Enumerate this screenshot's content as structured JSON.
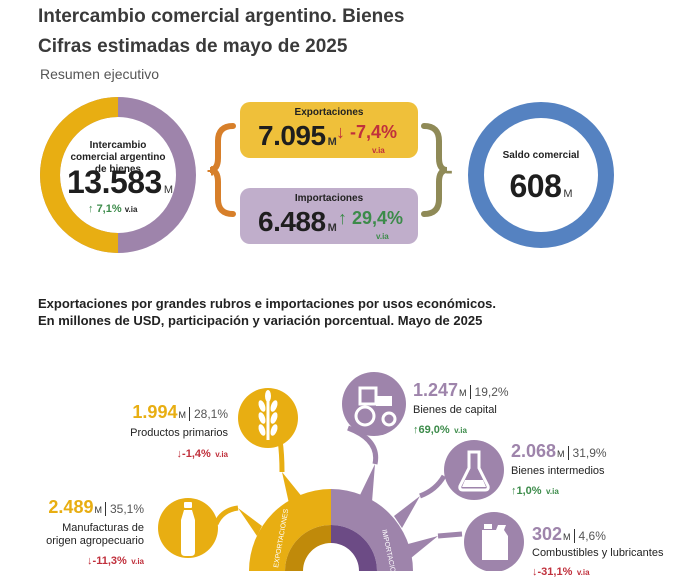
{
  "header": {
    "title": "Intercambio comercial argentino. Bienes",
    "subtitle": "Cifras estimadas de mayo de 2025",
    "section": "Resumen ejecutivo"
  },
  "summary": {
    "intercambio": {
      "label": "Intercambio comercial argentino de bienes",
      "value": "13.583",
      "unit": "M",
      "variation": "7,1%",
      "variation_suffix": "v.ia"
    },
    "exportaciones": {
      "label": "Exportaciones",
      "value": "7.095",
      "unit": "M",
      "variation": "-7,4%",
      "variation_suffix": "v.ia"
    },
    "importaciones": {
      "label": "Importaciones",
      "value": "6.488",
      "unit": "M",
      "variation": "29,4%",
      "variation_suffix": "v.ia"
    },
    "saldo": {
      "label": "Saldo comercial",
      "value": "608",
      "unit": "M"
    },
    "plus_sign": "+",
    "minus_sign": "-"
  },
  "breakdown": {
    "title_line1": "Exportaciones por grandes rubros e importaciones por usos económicos.",
    "title_line2": "En millones de USD, participación y variación porcentual. Mayo de 2025",
    "donut_label_left": "EXPORTACIONES",
    "donut_label_right": "IMPORTACIONES",
    "exports": [
      {
        "name": "Productos primarios",
        "value": "1.994",
        "unit": "M",
        "share": "28,1%",
        "variation": "-1,4%",
        "suffix": "v.ia",
        "icon": "wheat-icon"
      },
      {
        "name": "Manufacturas de origen agropecuario",
        "name_line1": "Manufacturas de",
        "name_line2": "origen agropecuario",
        "value": "2.489",
        "unit": "M",
        "share": "35,1%",
        "variation": "-11,3%",
        "suffix": "v.ia",
        "icon": "bottle-icon"
      }
    ],
    "imports": [
      {
        "name": "Bienes de capital",
        "value": "1.247",
        "unit": "M",
        "share": "19,2%",
        "variation": "69,0%",
        "suffix": "v.ia",
        "icon": "tractor-icon"
      },
      {
        "name": "Bienes intermedios",
        "value": "2.068",
        "unit": "M",
        "share": "31,9%",
        "variation": "1,0%",
        "suffix": "v.ia",
        "icon": "flask-icon"
      },
      {
        "name": "Combustibles y lubricantes",
        "value": "302",
        "unit": "M",
        "share": "4,6%",
        "variation": "-31,1%",
        "suffix": "v.ia",
        "icon": "fuel-can-icon"
      }
    ]
  },
  "colors": {
    "export_yellow": "#e8ae12",
    "import_purple": "#9e84ab",
    "saldo_blue": "#5582c1",
    "box_yellow": "#efc03a",
    "box_purple": "#c0aecb",
    "bracket_orange": "#d77f2a",
    "bracket_olive": "#8f8a57",
    "positive_green": "#3c8b4a",
    "negative_red": "#c0303c"
  }
}
